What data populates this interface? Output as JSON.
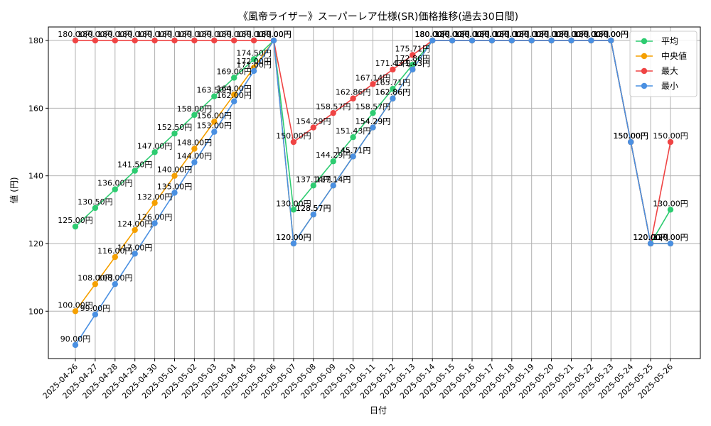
{
  "chart_data": {
    "type": "line",
    "title": "《風帝ライザー》スーパーレア仕様(SR)価格推移(過去30日間)",
    "xlabel": "日付",
    "ylabel": "値 (円)",
    "ylim": [
      86,
      184
    ],
    "yticks": [
      100,
      120,
      140,
      160,
      180
    ],
    "grid": true,
    "legend_position": "top-right",
    "value_suffix": "円",
    "categories": [
      "2025-04-26",
      "2025-04-27",
      "2025-04-28",
      "2025-04-29",
      "2025-04-30",
      "2025-05-01",
      "2025-05-02",
      "2025-05-03",
      "2025-05-04",
      "2025-05-05",
      "2025-05-06",
      "2025-05-07",
      "2025-05-08",
      "2025-05-09",
      "2025-05-10",
      "2025-05-11",
      "2025-05-12",
      "2025-05-13",
      "2025-05-14",
      "2025-05-15",
      "2025-05-16",
      "2025-05-17",
      "2025-05-18",
      "2025-05-19",
      "2025-05-20",
      "2025-05-21",
      "2025-05-22",
      "2025-05-23",
      "2025-05-24",
      "2025-05-25",
      "2025-05-26"
    ],
    "series": [
      {
        "name": "平均",
        "color": "#2ecc71",
        "values": [
          125.0,
          130.5,
          136.0,
          141.5,
          147.0,
          152.5,
          158.0,
          163.5,
          169.0,
          174.5,
          180.0,
          130.0,
          137.14,
          144.29,
          151.43,
          158.57,
          165.71,
          172.86,
          180.0,
          180.0,
          180.0,
          180.0,
          180.0,
          180.0,
          180.0,
          180.0,
          180.0,
          180.0,
          150.0,
          120.0,
          130.0
        ]
      },
      {
        "name": "中央値",
        "color": "#f5a000",
        "values": [
          100.0,
          108.0,
          116.0,
          124.0,
          132.0,
          140.0,
          148.0,
          156.0,
          164.0,
          172.0,
          180.0,
          120.0,
          128.57,
          137.14,
          145.71,
          154.29,
          162.86,
          171.43,
          180.0,
          180.0,
          180.0,
          180.0,
          180.0,
          180.0,
          180.0,
          180.0,
          180.0,
          180.0,
          150.0,
          120.0,
          120.0
        ]
      },
      {
        "name": "最大",
        "color": "#ef4444",
        "values": [
          180.0,
          180.0,
          180.0,
          180.0,
          180.0,
          180.0,
          180.0,
          180.0,
          180.0,
          180.0,
          180.0,
          150.0,
          154.29,
          158.57,
          162.86,
          167.14,
          171.43,
          175.71,
          180.0,
          180.0,
          180.0,
          180.0,
          180.0,
          180.0,
          180.0,
          180.0,
          180.0,
          180.0,
          150.0,
          120.0,
          150.0
        ]
      },
      {
        "name": "最小",
        "color": "#4a90e2",
        "values": [
          90.0,
          99.0,
          108.0,
          117.0,
          126.0,
          135.0,
          144.0,
          153.0,
          162.0,
          171.0,
          180.0,
          120.0,
          128.57,
          137.14,
          145.71,
          154.29,
          162.86,
          171.43,
          180.0,
          180.0,
          180.0,
          180.0,
          180.0,
          180.0,
          180.0,
          180.0,
          180.0,
          180.0,
          150.0,
          120.0,
          120.0
        ]
      }
    ]
  }
}
